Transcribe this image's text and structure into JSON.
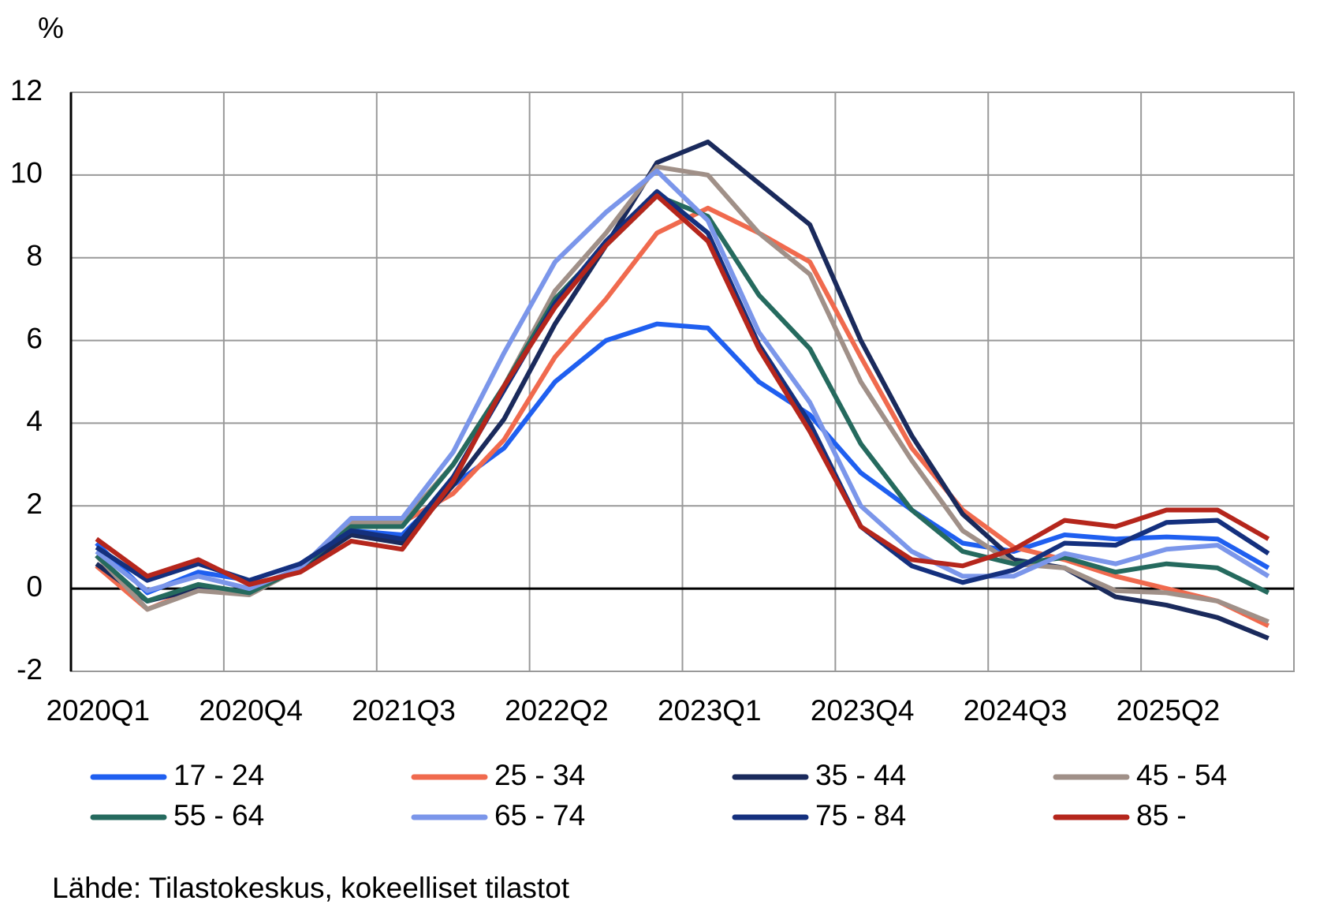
{
  "chart_data": {
    "type": "line",
    "y_label": "%",
    "categories": [
      "2020Q1",
      null,
      null,
      "2020Q4",
      null,
      null,
      "2021Q3",
      null,
      null,
      "2022Q2",
      null,
      null,
      "2023Q1",
      null,
      null,
      "2023Q4",
      null,
      null,
      "2024Q3",
      null,
      null,
      "2025Q2",
      null,
      null
    ],
    "ylim": [
      -2,
      12
    ],
    "yticks": [
      -2,
      0,
      2,
      4,
      6,
      8,
      10,
      12
    ],
    "grid": true,
    "series": [
      {
        "name": "17 - 24",
        "color": "#1f5ff0",
        "values": [
          1.1,
          -0.1,
          0.4,
          0.2,
          0.6,
          1.4,
          1.3,
          2.5,
          3.4,
          5.0,
          6.0,
          6.4,
          6.3,
          5.0,
          4.2,
          2.8,
          1.9,
          1.1,
          0.9,
          1.3,
          1.2,
          1.25,
          1.2,
          0.5
        ]
      },
      {
        "name": "25 - 34",
        "color": "#f06a4e",
        "values": [
          0.55,
          -0.5,
          0.0,
          -0.1,
          0.5,
          1.6,
          1.6,
          2.3,
          3.6,
          5.6,
          7.0,
          8.6,
          9.2,
          8.6,
          7.9,
          5.6,
          3.4,
          1.9,
          1.0,
          0.7,
          0.3,
          0.0,
          -0.3,
          -0.9
        ]
      },
      {
        "name": "35 - 44",
        "color": "#1a2a5c",
        "values": [
          0.6,
          -0.3,
          0.0,
          -0.1,
          0.5,
          1.3,
          1.1,
          2.5,
          4.1,
          6.4,
          8.3,
          10.3,
          10.8,
          9.8,
          8.8,
          6.0,
          3.7,
          1.8,
          0.7,
          0.5,
          -0.2,
          -0.4,
          -0.7,
          -1.2
        ]
      },
      {
        "name": "45 - 54",
        "color": "#a09088",
        "values": [
          0.8,
          -0.5,
          -0.05,
          -0.15,
          0.5,
          1.6,
          1.6,
          3.0,
          4.9,
          7.2,
          8.6,
          10.2,
          10.0,
          8.6,
          7.6,
          5.0,
          3.1,
          1.4,
          0.6,
          0.5,
          -0.05,
          -0.1,
          -0.3,
          -0.8
        ]
      },
      {
        "name": "55 - 64",
        "color": "#256a5e",
        "values": [
          0.8,
          -0.3,
          0.1,
          -0.1,
          0.5,
          1.5,
          1.5,
          3.0,
          4.9,
          7.0,
          8.3,
          9.5,
          9.0,
          7.1,
          5.8,
          3.5,
          1.9,
          0.9,
          0.6,
          0.75,
          0.4,
          0.6,
          0.5,
          -0.1
        ]
      },
      {
        "name": "65 - 74",
        "color": "#7b96ea",
        "values": [
          0.9,
          -0.05,
          0.3,
          0.0,
          0.5,
          1.7,
          1.7,
          3.3,
          5.7,
          7.9,
          9.1,
          10.1,
          8.9,
          6.2,
          4.5,
          2.0,
          0.9,
          0.3,
          0.3,
          0.85,
          0.6,
          0.95,
          1.05,
          0.3
        ]
      },
      {
        "name": "75 - 84",
        "color": "#14307e",
        "values": [
          1.0,
          0.2,
          0.6,
          0.2,
          0.6,
          1.4,
          1.2,
          2.7,
          4.8,
          6.9,
          8.4,
          9.6,
          8.6,
          5.9,
          4.0,
          1.5,
          0.55,
          0.15,
          0.45,
          1.1,
          1.05,
          1.6,
          1.65,
          0.85
        ]
      },
      {
        "name": "85 -",
        "color": "#b5261c",
        "values": [
          1.2,
          0.3,
          0.7,
          0.1,
          0.4,
          1.15,
          0.95,
          2.6,
          4.9,
          6.8,
          8.3,
          9.5,
          8.4,
          5.8,
          3.8,
          1.5,
          0.7,
          0.55,
          0.95,
          1.65,
          1.5,
          1.9,
          1.9,
          1.2
        ]
      }
    ],
    "source": "Lähde: Tilastokeskus, kokeelliset tilastot"
  }
}
